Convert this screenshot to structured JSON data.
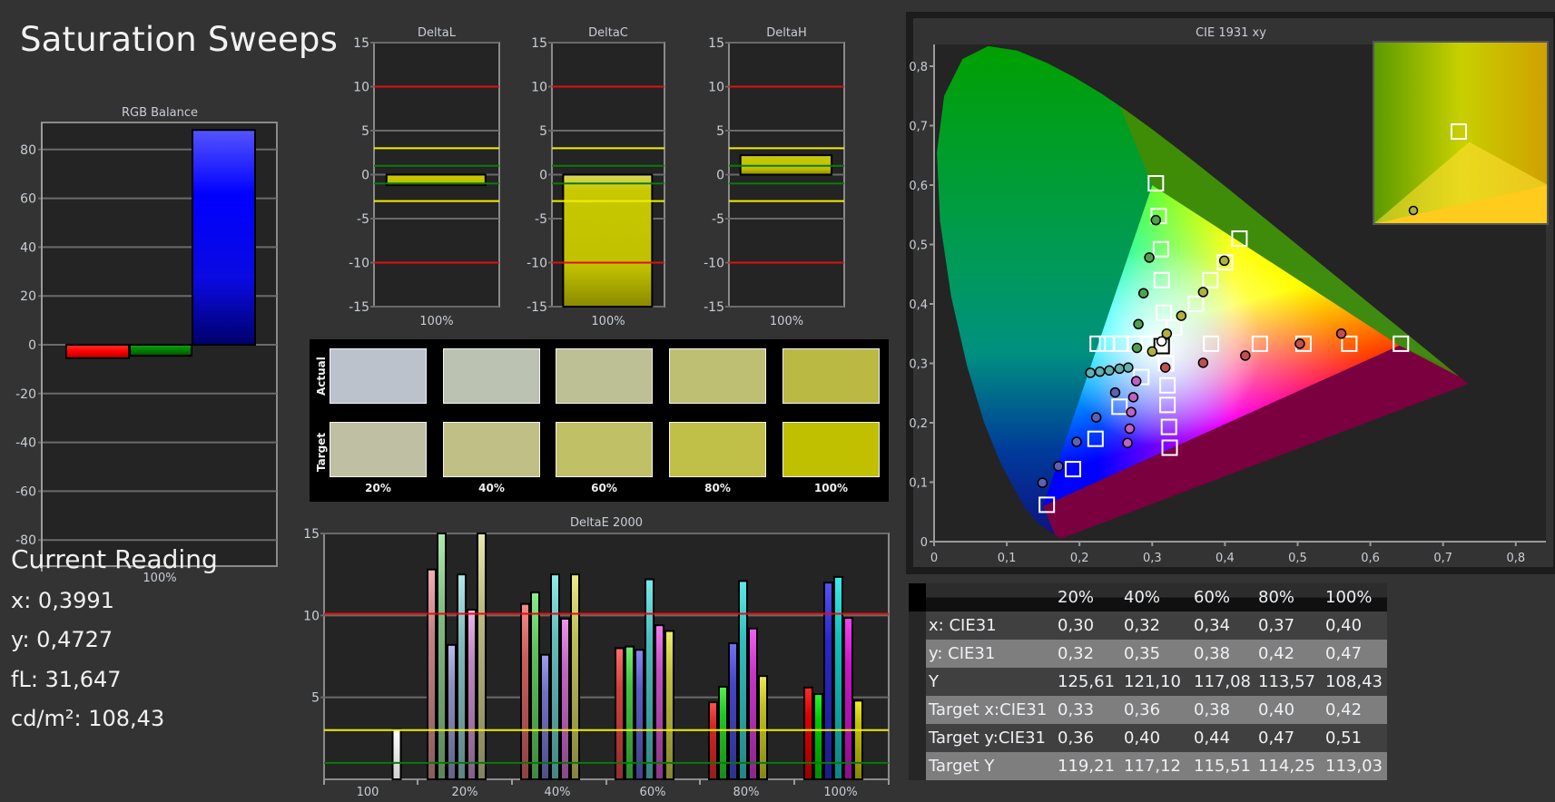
{
  "page_title": "Saturation Sweeps",
  "current_reading": {
    "heading": "Current Reading",
    "x": "x: 0,3991",
    "y": "y: 0,4727",
    "fL": "fL: 31,647",
    "cdm2": "cd/m²: 108,43"
  },
  "swatches": {
    "row_labels": [
      "Actual",
      "Target"
    ],
    "labels": [
      "20%",
      "40%",
      "60%",
      "80%",
      "100%"
    ],
    "actual_colors": [
      "#bcc2cc",
      "#bcc2b2",
      "#bdbf94",
      "#bebf72",
      "#b9b943"
    ],
    "target_colors": [
      "#bfc0a3",
      "#c0c086",
      "#c0c066",
      "#c0c048",
      "#c0c000"
    ]
  },
  "table": {
    "columns": [
      "",
      "20%",
      "40%",
      "60%",
      "80%",
      "100%"
    ],
    "rows": [
      {
        "cells": [
          "x: CIE31",
          "0,30",
          "0,32",
          "0,34",
          "0,37",
          "0,40"
        ]
      },
      {
        "cells": [
          "y: CIE31",
          "0,32",
          "0,35",
          "0,38",
          "0,42",
          "0,47"
        ]
      },
      {
        "cells": [
          "Y",
          "125,61",
          "121,10",
          "117,08",
          "113,57",
          "108,43"
        ]
      },
      {
        "cells": [
          "Target x:CIE31",
          "0,33",
          "0,36",
          "0,38",
          "0,40",
          "0,42"
        ]
      },
      {
        "cells": [
          "Target y:CIE31",
          "0,36",
          "0,40",
          "0,44",
          "0,47",
          "0,51"
        ]
      },
      {
        "cells": [
          "Target Y",
          "119,21",
          "117,12",
          "115,51",
          "114,25",
          "113,03"
        ]
      }
    ]
  },
  "colors": {
    "background": "#333333",
    "plot_bg": "#242424",
    "red_line": "#e01010",
    "yellow_line": "#f0f000",
    "green_line": "#0a7a0a"
  },
  "chart_data": [
    {
      "id": "rgb",
      "type": "bar",
      "title": "RGB Balance",
      "categories": [
        "100%"
      ],
      "series": [
        {
          "color": "#ff0000",
          "values": [
            -5.5
          ]
        },
        {
          "color": "#008000",
          "values": [
            -4.5
          ]
        },
        {
          "color": "#0000ff",
          "values": [
            88
          ]
        }
      ],
      "yticks": [
        "80",
        "60",
        "40",
        "20",
        "0",
        "-20",
        "-40",
        "-60",
        "-80"
      ],
      "ylim": [
        -91,
        91
      ],
      "grid": true
    },
    {
      "id": "deltaL",
      "type": "bar",
      "title": "DeltaL",
      "categories": [
        "100%"
      ],
      "values": [
        -1.2
      ],
      "bar_color": "#c0c000",
      "yticks": [
        "15",
        "10",
        "5",
        "0",
        "-5",
        "-10",
        "-15"
      ],
      "ylim": [
        -15,
        15
      ],
      "reference_lines": {
        "red": [
          10,
          -10
        ],
        "yellow": [
          3,
          -3
        ],
        "green": [
          1,
          -1
        ]
      }
    },
    {
      "id": "deltaC",
      "type": "bar",
      "title": "DeltaC",
      "categories": [
        "100%"
      ],
      "values": [
        -16
      ],
      "bar_color": "#c0c000",
      "yticks": [
        "15",
        "10",
        "5",
        "0",
        "-5",
        "-10",
        "-15"
      ],
      "ylim": [
        -15,
        15
      ],
      "reference_lines": {
        "red": [
          10,
          -10
        ],
        "yellow": [
          3,
          -3
        ],
        "green": [
          1,
          -1
        ]
      }
    },
    {
      "id": "deltaH",
      "type": "bar",
      "title": "DeltaH",
      "categories": [
        "100%"
      ],
      "values": [
        2.2
      ],
      "bar_color": "#c0c000",
      "yticks": [
        "15",
        "10",
        "5",
        "0",
        "-5",
        "-10",
        "-15"
      ],
      "ylim": [
        -15,
        15
      ],
      "reference_lines": {
        "red": [
          10,
          -10
        ],
        "yellow": [
          3,
          -3
        ],
        "green": [
          1,
          -1
        ]
      }
    },
    {
      "id": "deltaE",
      "type": "bar",
      "title": "DeltaE 2000",
      "categories": [
        "100",
        "20%",
        "40%",
        "60%",
        "80%",
        "100%"
      ],
      "white_value": 3.05,
      "series": [
        {
          "color": "red",
          "values": [
            null,
            12.8,
            10.7,
            8.0,
            4.7,
            5.6
          ]
        },
        {
          "color": "green",
          "values": [
            null,
            16,
            11.4,
            8.1,
            5.65,
            5.2
          ]
        },
        {
          "color": "blue",
          "values": [
            null,
            8.2,
            7.6,
            7.9,
            8.3,
            12.0
          ]
        },
        {
          "color": "cyan",
          "values": [
            null,
            12.5,
            12.5,
            12.2,
            12.1,
            12.35
          ]
        },
        {
          "color": "magenta",
          "values": [
            null,
            10.35,
            9.8,
            9.4,
            9.2,
            9.85
          ]
        },
        {
          "color": "yellow",
          "values": [
            null,
            16,
            12.5,
            9.05,
            6.3,
            4.8
          ]
        }
      ],
      "yticks": [
        "15",
        "10",
        "5"
      ],
      "ylim": [
        0,
        15
      ],
      "reference_lines": {
        "red": [
          10.1
        ],
        "yellow": [
          3
        ],
        "green": [
          1
        ]
      }
    },
    {
      "id": "cie",
      "type": "scatter",
      "title": "CIE 1931 xy",
      "xticks": [
        "0",
        "0,1",
        "0,2",
        "0,3",
        "0,4",
        "0,5",
        "0,6",
        "0,7",
        "0,8"
      ],
      "yticks": [
        "0",
        "0,1",
        "0,2",
        "0,3",
        "0,4",
        "0,5",
        "0,6",
        "0,7",
        "0,8"
      ],
      "xlim": [
        0,
        0.84
      ],
      "ylim": [
        0,
        0.84
      ],
      "gamut_triangle": [
        [
          0.64,
          0.33
        ],
        [
          0.3,
          0.6
        ],
        [
          0.15,
          0.06
        ]
      ],
      "targets": {
        "red": [
          [
            0.381,
            0.333
          ],
          [
            0.448,
            0.333
          ],
          [
            0.508,
            0.333
          ],
          [
            0.571,
            0.333
          ],
          [
            0.642,
            0.333
          ]
        ],
        "green": [
          [
            0.316,
            0.385
          ],
          [
            0.313,
            0.44
          ],
          [
            0.312,
            0.492
          ],
          [
            0.309,
            0.548
          ],
          [
            0.305,
            0.603
          ]
        ],
        "blue": [
          [
            0.285,
            0.277
          ],
          [
            0.255,
            0.227
          ],
          [
            0.222,
            0.173
          ],
          [
            0.191,
            0.122
          ],
          [
            0.155,
            0.062
          ]
        ],
        "cyan": [
          [
            0.295,
            0.333
          ],
          [
            0.276,
            0.333
          ],
          [
            0.257,
            0.333
          ],
          [
            0.238,
            0.333
          ],
          [
            0.225,
            0.333
          ]
        ],
        "magenta": [
          [
            0.319,
            0.3
          ],
          [
            0.321,
            0.263
          ],
          [
            0.321,
            0.23
          ],
          [
            0.323,
            0.193
          ],
          [
            0.324,
            0.158
          ]
        ],
        "yellow": [
          [
            0.33,
            0.36
          ],
          [
            0.36,
            0.4
          ],
          [
            0.38,
            0.44
          ],
          [
            0.4,
            0.47
          ],
          [
            0.42,
            0.51
          ]
        ],
        "white": [
          [
            0.313,
            0.329
          ]
        ]
      },
      "measured": {
        "red": [
          [
            0.318,
            0.293
          ],
          [
            0.37,
            0.301
          ],
          [
            0.428,
            0.313
          ],
          [
            0.503,
            0.333
          ],
          [
            0.56,
            0.35
          ]
        ],
        "green": [
          [
            0.279,
            0.326
          ],
          [
            0.281,
            0.366
          ],
          [
            0.288,
            0.418
          ],
          [
            0.296,
            0.478
          ],
          [
            0.305,
            0.541
          ]
        ],
        "blue": [
          [
            0.249,
            0.251
          ],
          [
            0.223,
            0.209
          ],
          [
            0.196,
            0.168
          ],
          [
            0.171,
            0.127
          ],
          [
            0.149,
            0.099
          ]
        ],
        "cyan": [
          [
            0.267,
            0.293
          ],
          [
            0.255,
            0.291
          ],
          [
            0.241,
            0.288
          ],
          [
            0.228,
            0.286
          ],
          [
            0.215,
            0.284
          ]
        ],
        "magenta": [
          [
            0.278,
            0.27
          ],
          [
            0.274,
            0.243
          ],
          [
            0.271,
            0.218
          ],
          [
            0.269,
            0.19
          ],
          [
            0.266,
            0.166
          ]
        ],
        "yellow": [
          [
            0.3,
            0.32
          ],
          [
            0.32,
            0.35
          ],
          [
            0.34,
            0.38
          ],
          [
            0.37,
            0.42
          ],
          [
            0.3991,
            0.4727
          ]
        ],
        "white": [
          [
            0.313,
            0.337
          ]
        ]
      }
    }
  ]
}
